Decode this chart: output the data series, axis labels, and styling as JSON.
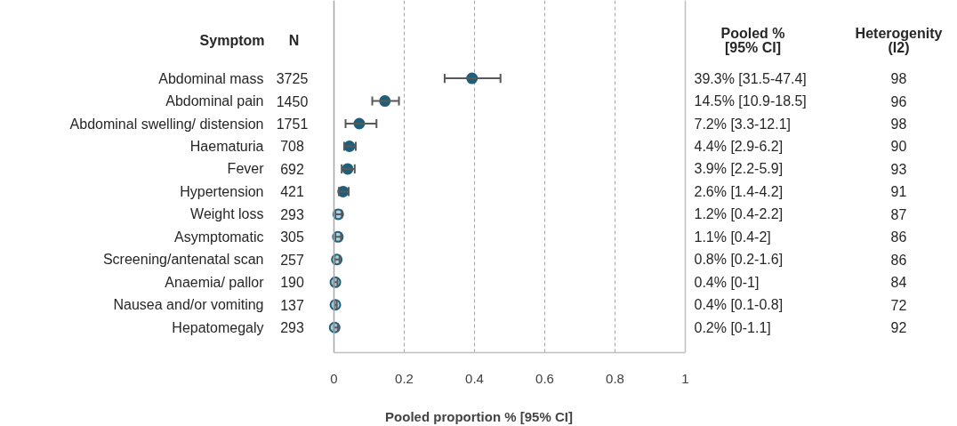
{
  "chart_data": {
    "type": "scatter",
    "orientation": "horizontal",
    "xlabel": "Pooled proportion % [95% CI]",
    "categories": [
      "Abdominal mass",
      "Abdominal pain",
      "Abdominal swelling/ distension",
      "Haematuria",
      "Fever",
      "Hypertension",
      "Weight loss",
      "Asymptomatic",
      "Screening/antenatal scan",
      "Anaemia/ pallor",
      "Nausea and/or vomiting",
      "Hepatomegaly"
    ],
    "series": [
      {
        "color": "#1f5f7a",
        "values": [
          0.393,
          0.145,
          0.072,
          0.044,
          0.039,
          0.026,
          null,
          null,
          null,
          null,
          null,
          null
        ],
        "errors": [
          [
            0.315,
            0.474
          ],
          [
            0.109,
            0.185
          ],
          [
            0.033,
            0.121
          ],
          [
            0.029,
            0.062
          ],
          [
            0.022,
            0.059
          ],
          [
            0.014,
            0.042
          ],
          null,
          null,
          null,
          null,
          null,
          null
        ]
      },
      {
        "color": "#a9d3e6",
        "values": [
          null,
          null,
          null,
          null,
          null,
          null,
          0.012,
          0.011,
          0.008,
          0.004,
          0.004,
          0.002
        ],
        "errors": [
          null,
          null,
          null,
          null,
          null,
          null,
          [
            0.004,
            0.022
          ],
          [
            0.004,
            0.02
          ],
          [
            0.002,
            0.016
          ],
          [
            0,
            0.01
          ],
          [
            0.001,
            0.008
          ],
          [
            0,
            0.011
          ]
        ]
      }
    ],
    "value_labels": [
      "39.3% [31.5-47.4]",
      "14.5% [10.9-18.5]",
      "7.2% [3.3-12.1]",
      "4.4% [2.9-6.2]",
      "3.9% [2.2-5.9]",
      "2.6% [1.4-4.2]",
      "1.2% [0.4-2.2]",
      "1.1% [0.4-2]",
      "0.8% [0.2-1.6]",
      "0.4% [0-1]",
      "0.4% [0.1-0.8]",
      "0.2% [0-1.1]"
    ],
    "annotations": [
      "Symptom",
      "N",
      "Pooled %\n[95% CI]",
      "Heterogenity\n(I2)",
      "3725",
      "1450",
      "1751",
      "708",
      "692",
      "421",
      "293",
      "305",
      "257",
      "190",
      "137",
      "293",
      "98",
      "96",
      "98",
      "90",
      "93",
      "91",
      "87",
      "86",
      "86",
      "84",
      "72",
      "92"
    ],
    "xlim": [
      0,
      1
    ],
    "xticks": [
      0,
      0.2,
      0.4,
      0.6,
      0.8,
      1
    ],
    "grid": "x",
    "line_style": "dashed",
    "marker": "circle",
    "ref_lines": [
      {
        "axis": "x",
        "value": 0,
        "color": "#a6a6a6",
        "line_style": "solid"
      },
      {
        "axis": "x",
        "value": 1,
        "color": "#bfbfbf",
        "line_style": "solid"
      }
    ]
  }
}
